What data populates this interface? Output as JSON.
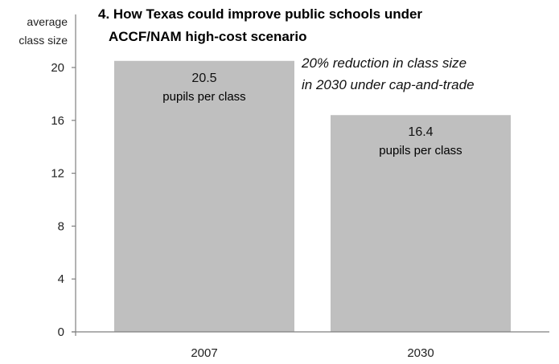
{
  "chart_data": {
    "type": "bar",
    "title_lines": [
      "4. How Texas could improve public schools under",
      "ACCF/NAM high-cost scenario"
    ],
    "ylabel_lines": [
      "average",
      "class size"
    ],
    "categories": [
      "2007",
      "2030"
    ],
    "values": [
      20.5,
      16.4
    ],
    "value_labels": [
      "20.5",
      "16.4"
    ],
    "unit_label": "pupils per class",
    "annotation_lines": [
      "20% reduction in class size",
      "in 2030 under cap-and-trade"
    ],
    "yticks": [
      0,
      4,
      8,
      12,
      16,
      20
    ],
    "ylim": [
      0,
      20.5
    ],
    "grid": false,
    "bar_color": "#bfbfbf",
    "axis_color": "#7f7f7f"
  }
}
